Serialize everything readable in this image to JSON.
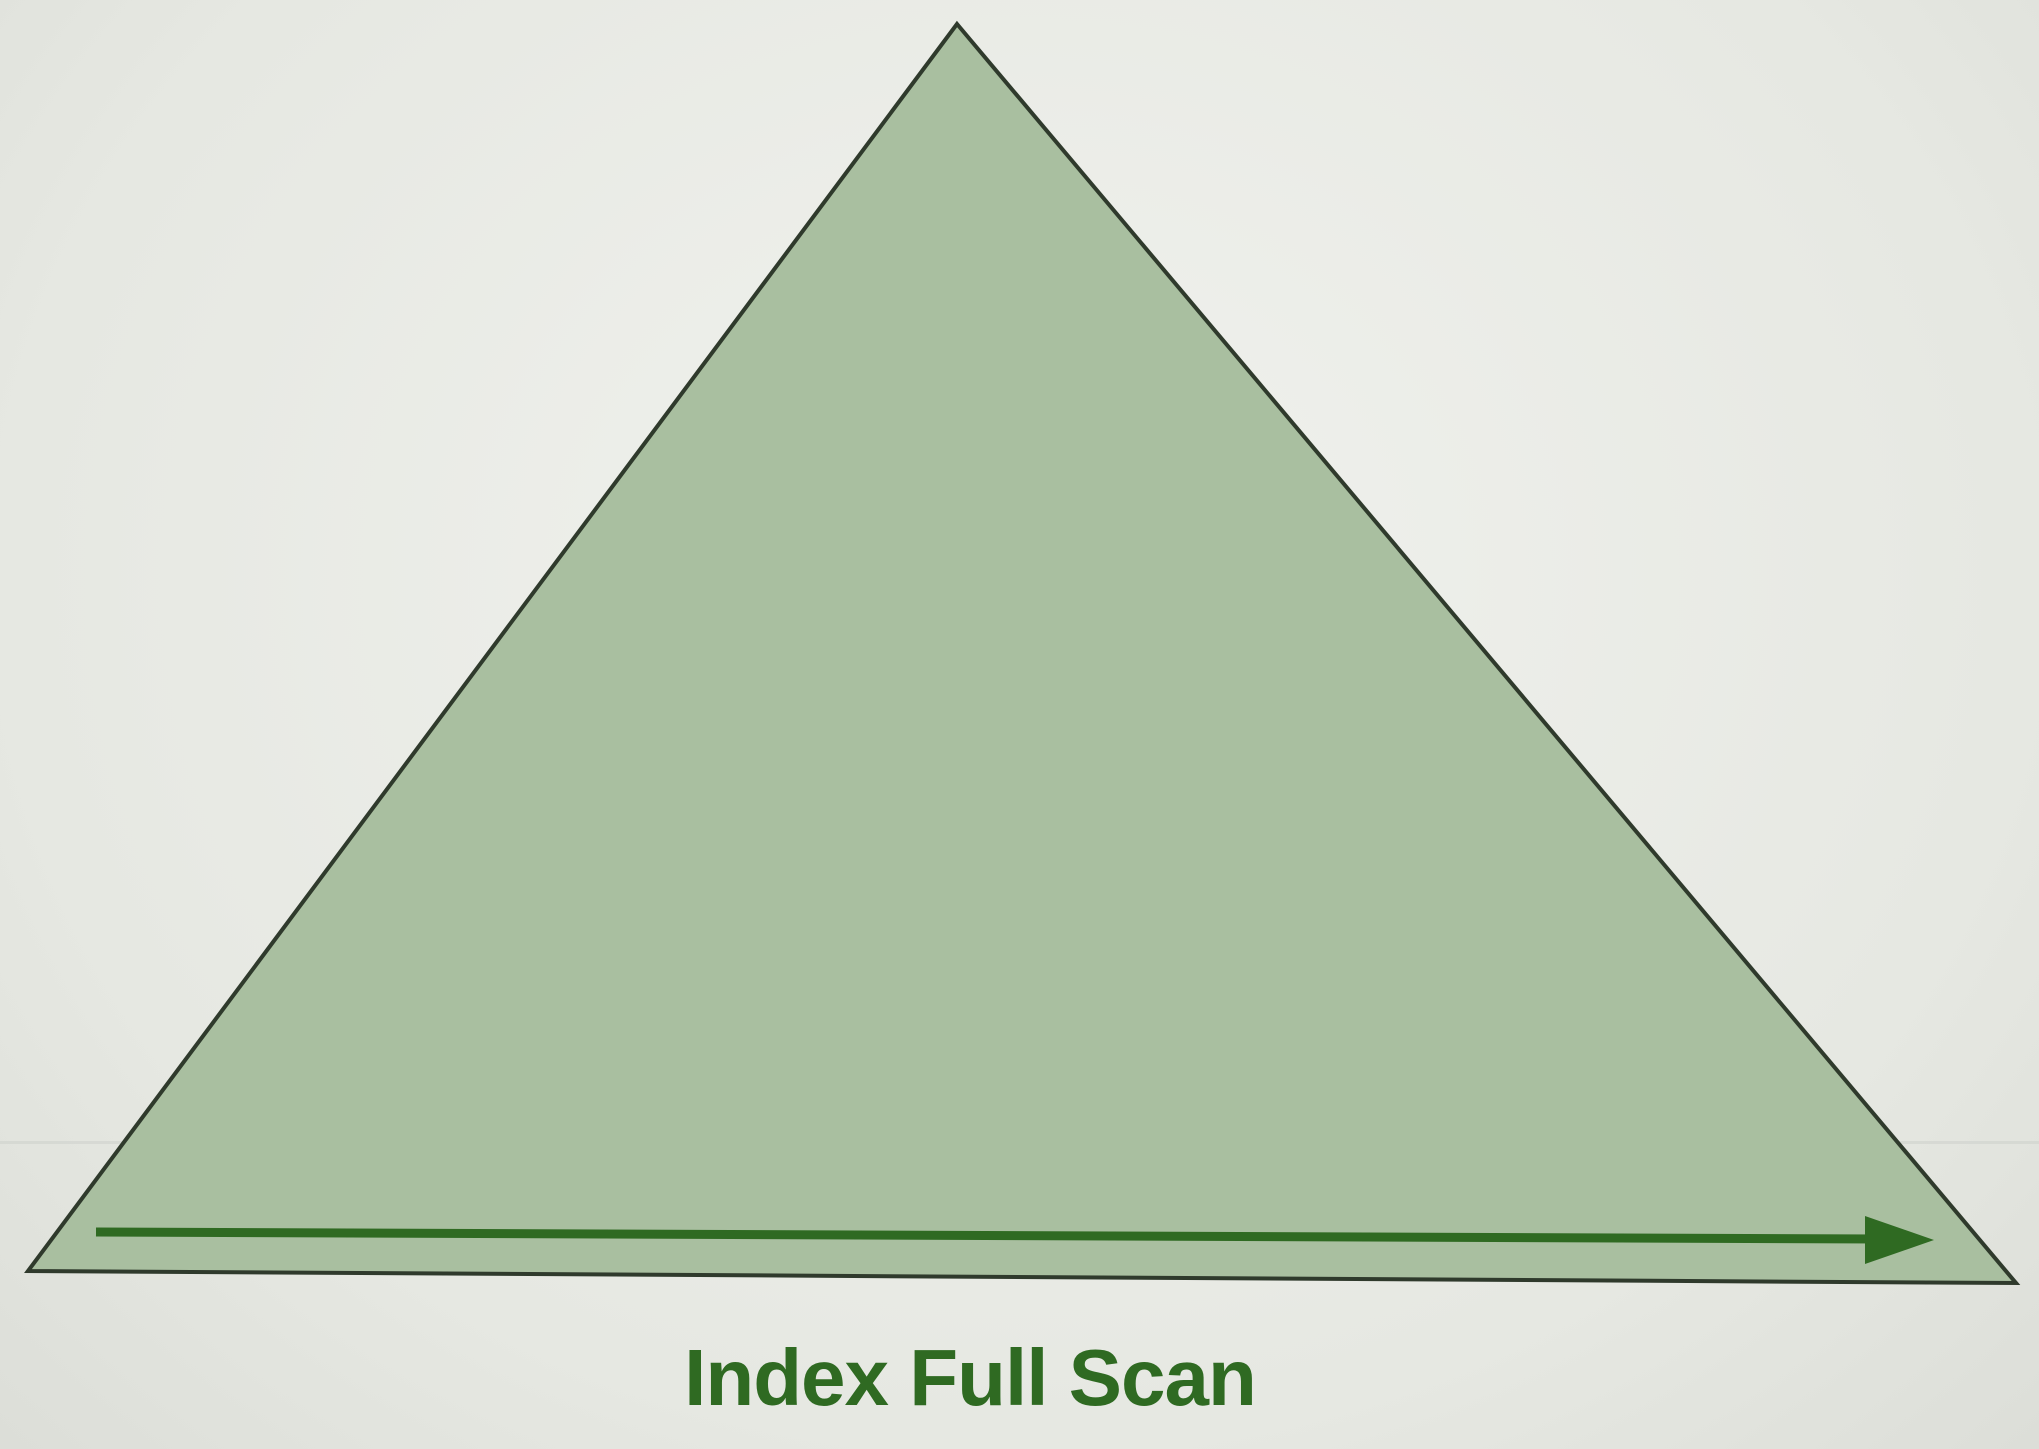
{
  "diagram": {
    "caption": "Index Full Scan",
    "shape": "triangle",
    "scan_direction": "left-to-right",
    "colors": {
      "triangle_fill": "#a9bfa0",
      "triangle_stroke": "#2f3a2c",
      "arrow": "#2f6a22",
      "caption": "#2f6a22"
    }
  }
}
